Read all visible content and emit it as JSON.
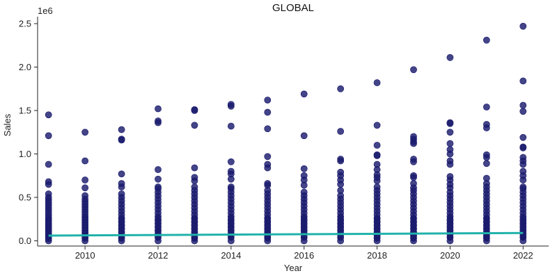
{
  "chart_data": {
    "type": "scatter",
    "title": "GLOBAL",
    "xlabel": "Year",
    "ylabel": "Sales",
    "y_offset_label": "1e6",
    "y_scale": 1000000,
    "xlim": [
      2008.7,
      2022.7
    ],
    "ylim": [
      -60000,
      2580000
    ],
    "x_ticks": [
      2010,
      2012,
      2014,
      2016,
      2018,
      2020,
      2022
    ],
    "y_ticks": [
      0,
      500000,
      1000000,
      1500000,
      2000000,
      2500000
    ],
    "y_tick_labels": [
      "0.0",
      "0.5",
      "1.0",
      "1.5",
      "2.0",
      "2.5"
    ],
    "grid": false,
    "point_color": "#1b1b6e",
    "trend_color": "#20b2aa",
    "series": [
      {
        "values": [
          {
            "x": 2009,
            "y": [
              1450000,
              1210000,
              880000,
              680000,
              650000,
              540000,
              500000,
              470000,
              440000,
              410000,
              380000,
              350000,
              320000,
              290000,
              260000,
              230000,
              200000,
              170000,
              140000,
              110000,
              80000,
              50000,
              25000,
              0
            ]
          },
          {
            "x": 2010,
            "y": [
              1250000,
              920000,
              700000,
              610000,
              520000,
              480000,
              450000,
              420000,
              390000,
              360000,
              330000,
              300000,
              270000,
              240000,
              210000,
              180000,
              150000,
              120000,
              90000,
              60000,
              30000,
              0
            ]
          },
          {
            "x": 2011,
            "y": [
              1280000,
              1170000,
              1160000,
              770000,
              660000,
              620000,
              540000,
              500000,
              460000,
              420000,
              380000,
              340000,
              300000,
              260000,
              220000,
              180000,
              140000,
              100000,
              60000,
              30000,
              0
            ]
          },
          {
            "x": 2012,
            "y": [
              1520000,
              1380000,
              1360000,
              820000,
              710000,
              620000,
              600000,
              560000,
              520000,
              480000,
              440000,
              400000,
              360000,
              320000,
              280000,
              240000,
              200000,
              160000,
              120000,
              80000,
              40000,
              0
            ]
          },
          {
            "x": 2013,
            "y": [
              1510000,
              1500000,
              1330000,
              840000,
              730000,
              690000,
              620000,
              580000,
              540000,
              500000,
              460000,
              420000,
              380000,
              340000,
              300000,
              260000,
              220000,
              180000,
              140000,
              100000,
              60000,
              30000,
              0
            ]
          },
          {
            "x": 2014,
            "y": [
              1570000,
              1550000,
              1320000,
              910000,
              800000,
              770000,
              710000,
              620000,
              600000,
              560000,
              520000,
              480000,
              440000,
              400000,
              360000,
              320000,
              280000,
              240000,
              200000,
              160000,
              120000,
              80000,
              40000,
              0
            ]
          },
          {
            "x": 2015,
            "y": [
              1620000,
              1480000,
              1290000,
              970000,
              880000,
              840000,
              660000,
              640000,
              580000,
              540000,
              500000,
              460000,
              420000,
              380000,
              340000,
              300000,
              260000,
              220000,
              180000,
              140000,
              100000,
              60000,
              30000,
              0
            ]
          },
          {
            "x": 2016,
            "y": [
              1690000,
              1210000,
              830000,
              750000,
              700000,
              640000,
              560000,
              520000,
              480000,
              440000,
              400000,
              360000,
              320000,
              280000,
              240000,
              200000,
              160000,
              120000,
              80000,
              40000,
              0
            ]
          },
          {
            "x": 2017,
            "y": [
              1750000,
              1260000,
              940000,
              920000,
              790000,
              750000,
              700000,
              650000,
              580000,
              520000,
              480000,
              440000,
              400000,
              360000,
              320000,
              280000,
              240000,
              200000,
              160000,
              120000,
              80000,
              40000,
              0
            ]
          },
          {
            "x": 2018,
            "y": [
              1820000,
              1330000,
              1100000,
              990000,
              980000,
              880000,
              820000,
              760000,
              730000,
              690000,
              620000,
              580000,
              540000,
              500000,
              460000,
              420000,
              380000,
              340000,
              300000,
              260000,
              220000,
              180000,
              140000,
              100000,
              60000,
              30000,
              0
            ]
          },
          {
            "x": 2019,
            "y": [
              1970000,
              1200000,
              1170000,
              1140000,
              1120000,
              940000,
              910000,
              750000,
              730000,
              660000,
              610000,
              580000,
              540000,
              500000,
              460000,
              420000,
              380000,
              340000,
              300000,
              260000,
              220000,
              180000,
              140000,
              100000,
              60000,
              30000,
              0
            ]
          },
          {
            "x": 2020,
            "y": [
              2110000,
              1360000,
              1350000,
              1250000,
              1120000,
              1050000,
              1000000,
              920000,
              880000,
              740000,
              700000,
              650000,
              610000,
              560000,
              520000,
              480000,
              440000,
              400000,
              360000,
              320000,
              280000,
              240000,
              200000,
              160000,
              120000,
              80000,
              40000,
              0
            ]
          },
          {
            "x": 2021,
            "y": [
              2310000,
              1540000,
              1340000,
              1300000,
              990000,
              960000,
              890000,
              720000,
              660000,
              620000,
              580000,
              540000,
              500000,
              460000,
              420000,
              380000,
              340000,
              300000,
              260000,
              220000,
              180000,
              140000,
              100000,
              60000,
              30000,
              0
            ]
          },
          {
            "x": 2022,
            "y": [
              2470000,
              1840000,
              1560000,
              1490000,
              1190000,
              1080000,
              1070000,
              960000,
              920000,
              880000,
              800000,
              750000,
              700000,
              620000,
              600000,
              560000,
              520000,
              480000,
              440000,
              400000,
              360000,
              320000,
              280000,
              240000,
              200000,
              160000,
              120000,
              80000,
              40000,
              0
            ]
          }
        ]
      }
    ],
    "trend": {
      "x": [
        2009,
        2022
      ],
      "y": [
        60000,
        90000
      ]
    }
  }
}
